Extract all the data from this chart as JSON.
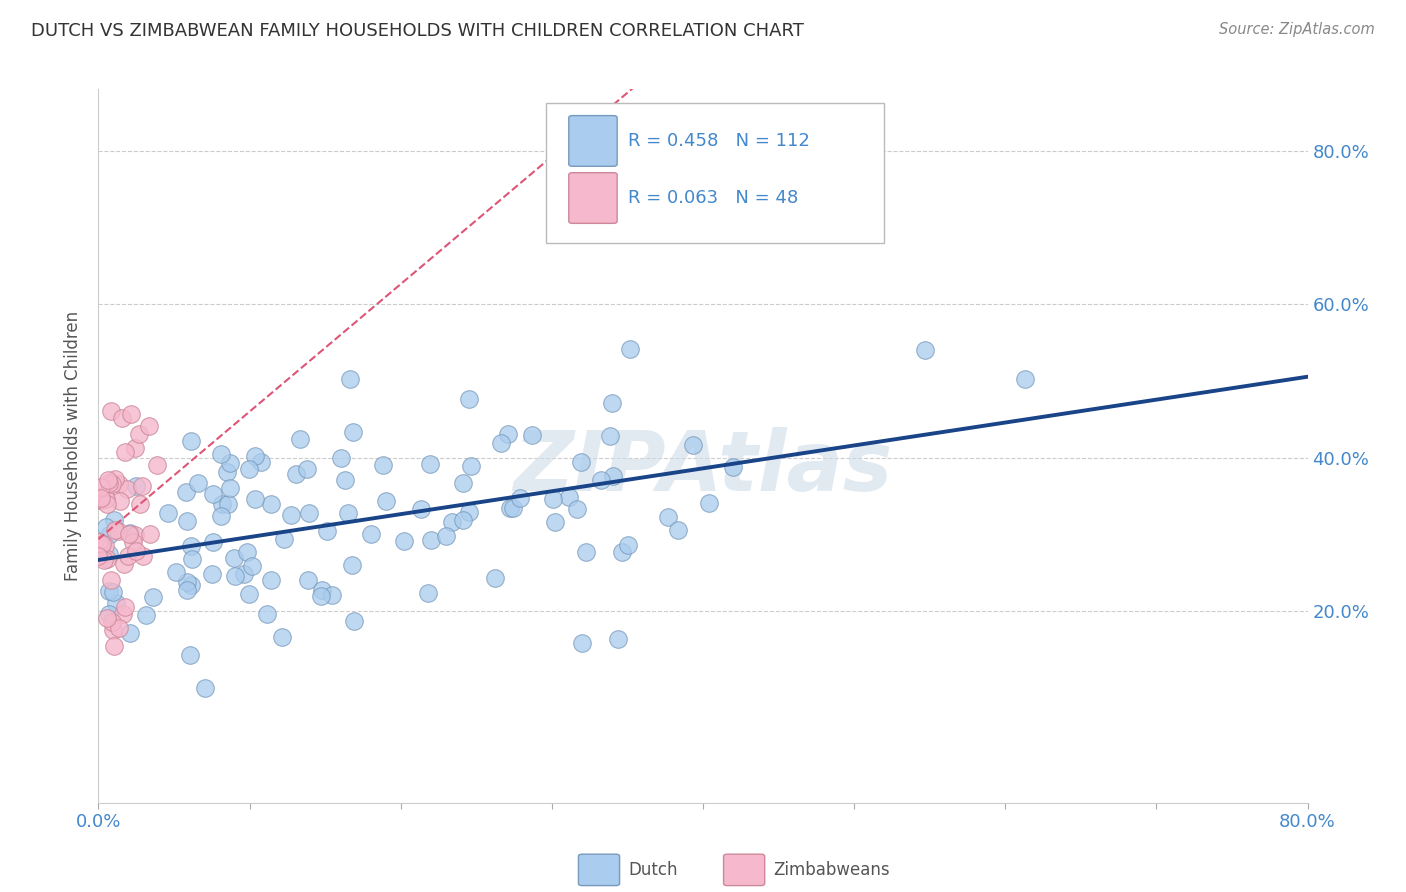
{
  "title": "DUTCH VS ZIMBABWEAN FAMILY HOUSEHOLDS WITH CHILDREN CORRELATION CHART",
  "source": "Source: ZipAtlas.com",
  "ylabel": "Family Households with Children",
  "ytick_labels": [
    "20.0%",
    "40.0%",
    "60.0%",
    "80.0%"
  ],
  "ytick_values": [
    0.2,
    0.4,
    0.6,
    0.8
  ],
  "xlim": [
    0.0,
    0.8
  ],
  "ylim": [
    -0.05,
    0.88
  ],
  "dutch_color": "#aaccee",
  "dutch_edge": "#7799bb",
  "dutch_line_color": "#1a4488",
  "zimb_color": "#f5b8cc",
  "zimb_edge": "#cc8899",
  "zimb_line_color": "#dd5577",
  "background_color": "#ffffff",
  "watermark": "ZIPAtlas",
  "watermark_color": "#d0dde8",
  "grid_color": "#cccccc",
  "title_color": "#333333",
  "axis_label_color": "#4488cc",
  "legend_text_color": "#4488cc"
}
